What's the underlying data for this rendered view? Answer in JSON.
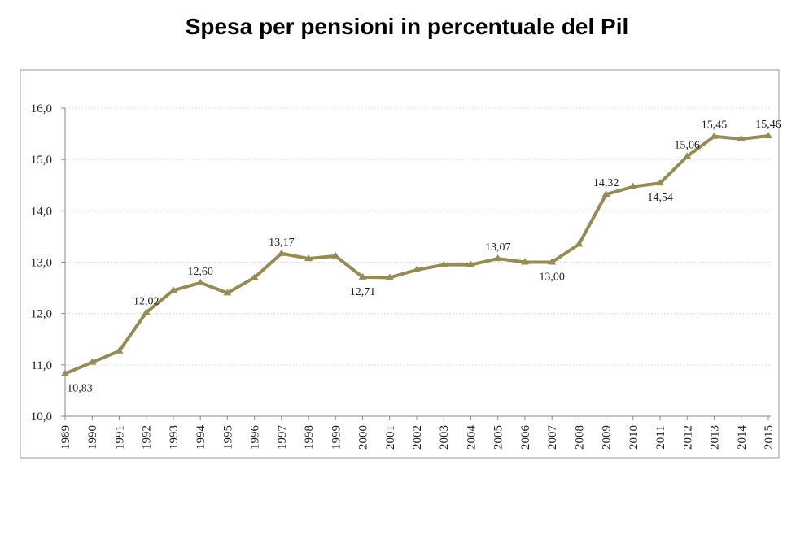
{
  "chart_data": {
    "type": "line",
    "title": "Spesa per pensioni in percentuale del Pil",
    "categories": [
      "1989",
      "1990",
      "1991",
      "1992",
      "1993",
      "1994",
      "1995",
      "1996",
      "1997",
      "1998",
      "1999",
      "2000",
      "2001",
      "2002",
      "2003",
      "2004",
      "2005",
      "2006",
      "2007",
      "2008",
      "2009",
      "2010",
      "2011",
      "2012",
      "2013",
      "2014",
      "2015"
    ],
    "series": [
      {
        "color": "#958b55",
        "values": [
          10.83,
          11.05,
          11.27,
          12.02,
          12.45,
          12.6,
          12.4,
          12.7,
          13.17,
          13.07,
          13.12,
          12.71,
          12.7,
          12.85,
          12.95,
          12.95,
          13.07,
          13.0,
          13.0,
          13.35,
          14.32,
          14.47,
          14.54,
          15.06,
          15.45,
          15.4,
          15.46
        ],
        "value_labels": [
          "10,83",
          null,
          null,
          "12,02",
          null,
          "12,60",
          null,
          null,
          "13,17",
          null,
          null,
          "12,71",
          null,
          null,
          null,
          null,
          "13,07",
          null,
          "13,00",
          null,
          "14,32",
          null,
          "14,54",
          "15,06",
          "15,45",
          null,
          "15,46"
        ]
      }
    ],
    "ylim": [
      10,
      16
    ],
    "yticks": [
      {
        "value": 10,
        "label": "10,0"
      },
      {
        "value": 11,
        "label": "11,0"
      },
      {
        "value": 12,
        "label": "12,0"
      },
      {
        "value": 13,
        "label": "13,0"
      },
      {
        "value": 14,
        "label": "14,0"
      },
      {
        "value": 15,
        "label": "15,0"
      },
      {
        "value": 16,
        "label": "16,0"
      }
    ],
    "grid": true
  }
}
